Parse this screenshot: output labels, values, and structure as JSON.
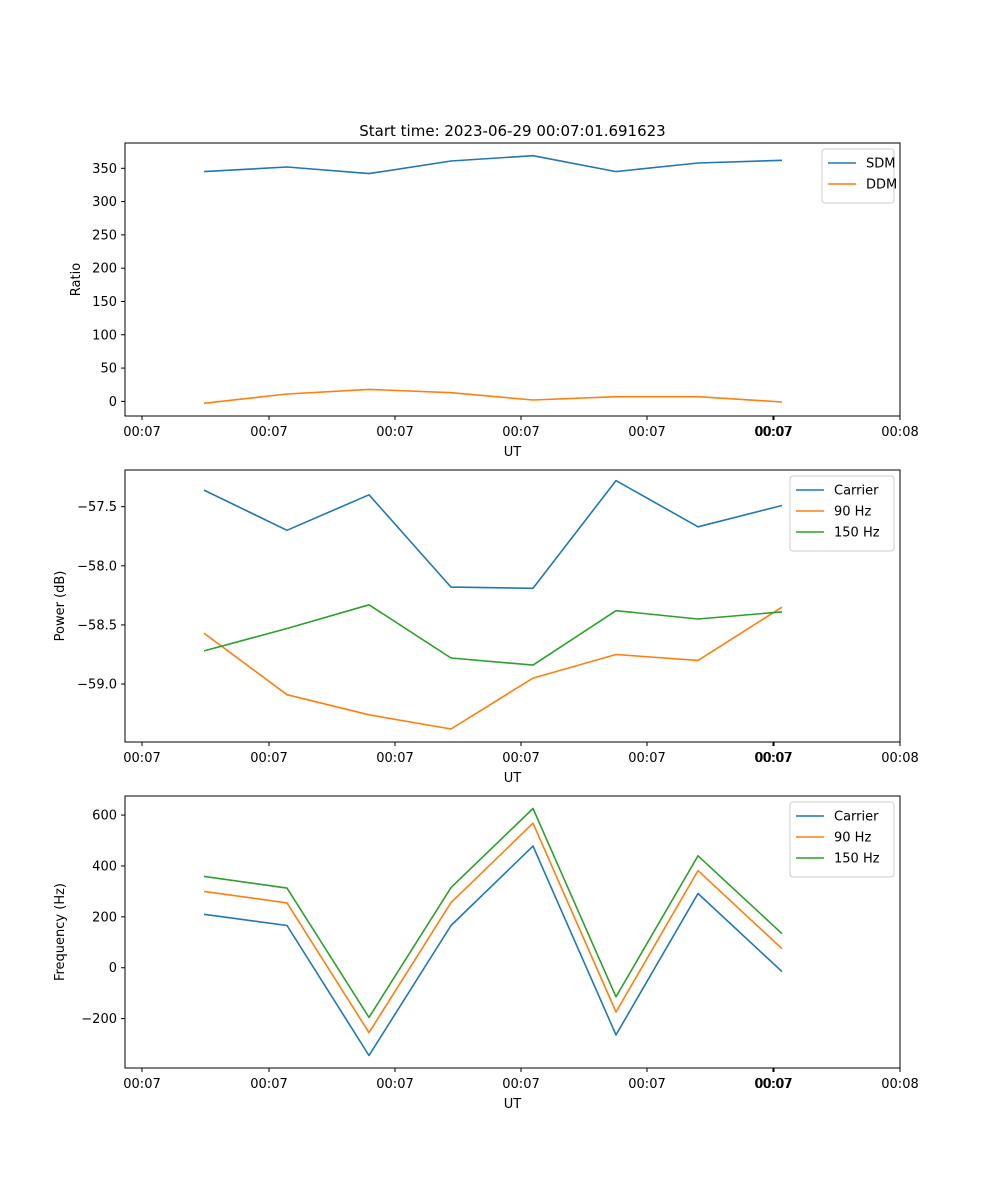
{
  "figure": {
    "title": "Start time: 2023-06-29 00:07:01.691623"
  },
  "chart_data": [
    {
      "type": "line",
      "xlabel": "UT",
      "ylabel": "Ratio",
      "x_tick_labels": [
        "00:07",
        "00:07",
        "00:07",
        "00:07",
        "00:07",
        "00:07",
        "00:07",
        "00:08"
      ],
      "ylim": [
        -22,
        388
      ],
      "yticks": [
        0,
        50,
        100,
        150,
        200,
        250,
        300,
        350
      ],
      "grid": false,
      "legend": "top-right",
      "series": [
        {
          "name": "SDM",
          "color": "#1f77b4",
          "values": [
            345,
            352,
            342,
            361,
            369,
            345,
            358,
            362
          ]
        },
        {
          "name": "DDM",
          "color": "#ff7f0e",
          "values": [
            -3,
            11,
            18,
            13,
            2,
            7,
            7,
            -1
          ]
        }
      ]
    },
    {
      "type": "line",
      "xlabel": "UT",
      "ylabel": "Power (dB)",
      "x_tick_labels": [
        "00:07",
        "00:07",
        "00:07",
        "00:07",
        "00:07",
        "00:07",
        "00:07",
        "00:08"
      ],
      "ylim": [
        -59.49,
        -57.19
      ],
      "yticks": [
        -59.0,
        -58.5,
        -58.0,
        -57.5
      ],
      "ytick_labels": [
        "−59.0",
        "−58.5",
        "−58.0",
        "−57.5"
      ],
      "grid": false,
      "legend": "top-right",
      "series": [
        {
          "name": "Carrier",
          "color": "#1f77b4",
          "values": [
            -57.36,
            -57.7,
            -57.4,
            -58.18,
            -58.19,
            -57.28,
            -57.67,
            -57.49
          ]
        },
        {
          "name": "90 Hz",
          "color": "#ff7f0e",
          "values": [
            -58.57,
            -59.09,
            -59.26,
            -59.38,
            -58.95,
            -58.75,
            -58.8,
            -58.35
          ]
        },
        {
          "name": "150 Hz",
          "color": "#2ca02c",
          "values": [
            -58.72,
            -58.53,
            -58.33,
            -58.78,
            -58.84,
            -58.38,
            -58.45,
            -58.39
          ]
        }
      ]
    },
    {
      "type": "line",
      "xlabel": "UT",
      "ylabel": "Frequency (Hz)",
      "x_tick_labels": [
        "00:07",
        "00:07",
        "00:07",
        "00:07",
        "00:07",
        "00:07",
        "00:07",
        "00:08"
      ],
      "ylim": [
        -394,
        675
      ],
      "yticks": [
        -200,
        0,
        200,
        400,
        600
      ],
      "ytick_labels": [
        "−200",
        "0",
        "200",
        "400",
        "600"
      ],
      "grid": false,
      "legend": "top-right",
      "series": [
        {
          "name": "Carrier",
          "color": "#1f77b4",
          "values": [
            210,
            166,
            -345,
            166,
            478,
            -264,
            292,
            -15
          ]
        },
        {
          "name": "90 Hz",
          "color": "#ff7f0e",
          "values": [
            300,
            255,
            -255,
            256,
            568,
            -174,
            382,
            75
          ]
        },
        {
          "name": "150 Hz",
          "color": "#2ca02c",
          "values": [
            359,
            313,
            -195,
            315,
            626,
            -114,
            440,
            134
          ]
        }
      ]
    }
  ]
}
